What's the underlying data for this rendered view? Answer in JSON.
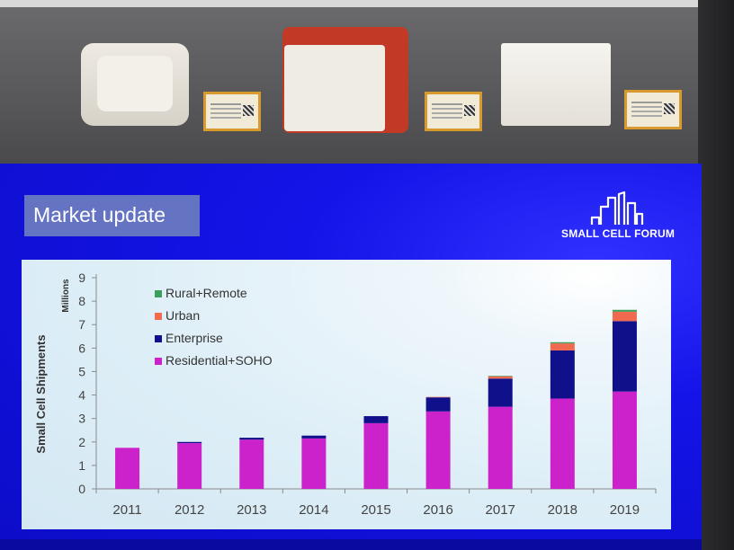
{
  "slide": {
    "title": "Market update",
    "logo_text": "SMALL CELL FORUM"
  },
  "colors": {
    "rural_remote": "#3aa05a",
    "urban": "#f06a50",
    "enterprise": "#10108a",
    "residential_soho": "#cc22cc",
    "slide_background": "#1414e8",
    "title_box": "#6473c2"
  },
  "icons": [
    "city-skyline-icon"
  ],
  "chart_data": {
    "type": "bar",
    "stacked": true,
    "ylabel": "Small Cell Shipments",
    "yunit": "Millions",
    "ylim": [
      0,
      9
    ],
    "yticks": [
      "0",
      "1",
      "2",
      "3",
      "4",
      "5",
      "6",
      "7",
      "8",
      "9"
    ],
    "categories": [
      "2011",
      "2012",
      "2013",
      "2014",
      "2015",
      "2016",
      "2017",
      "2018",
      "2019"
    ],
    "legend_position": "top-left",
    "series": [
      {
        "name": "Residential+SOHO",
        "color": "#cc22cc",
        "values": [
          1.75,
          1.95,
          2.1,
          2.15,
          2.8,
          3.3,
          3.5,
          3.85,
          4.15
        ]
      },
      {
        "name": "Enterprise",
        "color": "#10108a",
        "values": [
          0.0,
          0.05,
          0.08,
          0.12,
          0.3,
          0.6,
          1.2,
          2.05,
          3.0
        ]
      },
      {
        "name": "Urban",
        "color": "#f06a50",
        "values": [
          0.0,
          0.0,
          0.0,
          0.0,
          0.0,
          0.02,
          0.1,
          0.3,
          0.4
        ]
      },
      {
        "name": "Rural+Remote",
        "color": "#3aa05a",
        "values": [
          0.0,
          0.0,
          0.0,
          0.0,
          0.0,
          0.0,
          0.02,
          0.05,
          0.08
        ]
      }
    ],
    "legend_order": [
      "Rural+Remote",
      "Urban",
      "Enterprise",
      "Residential+SOHO"
    ],
    "grid": false
  }
}
